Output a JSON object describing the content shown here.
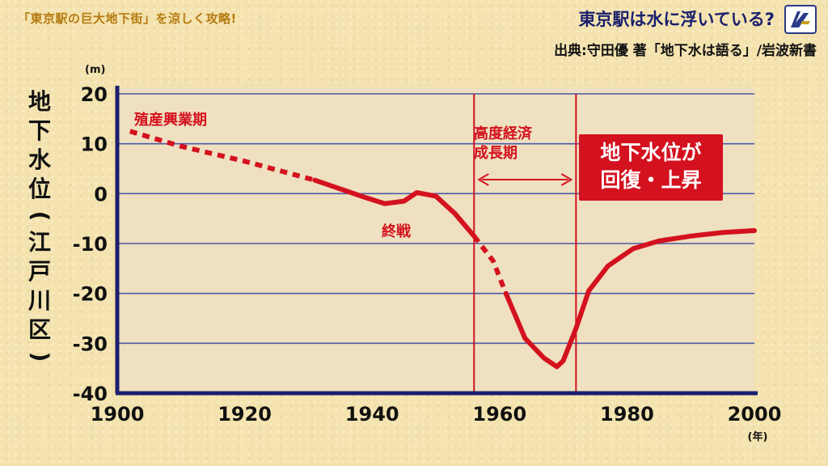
{
  "header": {
    "show_title": "「東京駅の巨大地下街」を涼しく攻略!",
    "topic_title": "東京駅は水に浮いている?",
    "source": "出典:守田優 著「地下水は語る」/岩波新書"
  },
  "chart_data": {
    "type": "line",
    "ylabel_chars": [
      "地",
      "下",
      "水",
      "位",
      "(",
      "江",
      "戸",
      "川",
      "区",
      ")"
    ],
    "yunit": "(m)",
    "xunit": "(年)",
    "xlim": [
      1900,
      2000
    ],
    "ylim": [
      -40,
      20
    ],
    "xticks": [
      1900,
      1920,
      1940,
      1960,
      1980,
      2000
    ],
    "yticks": [
      20,
      10,
      0,
      -10,
      -20,
      -30,
      -40
    ],
    "grid": true,
    "series": [
      {
        "points": [
          [
            1902,
            12.5
          ],
          [
            1910,
            9.5
          ],
          [
            1920,
            6.5
          ],
          [
            1931,
            2.7
          ],
          [
            1936,
            0.5
          ],
          [
            1939,
            -0.8
          ],
          [
            1942,
            -2.0
          ],
          [
            1945,
            -1.5
          ],
          [
            1947,
            0.2
          ],
          [
            1950,
            -0.5
          ],
          [
            1953,
            -4.0
          ],
          [
            1956,
            -8.5
          ],
          [
            1959,
            -13.5
          ],
          [
            1961,
            -20
          ],
          [
            1964,
            -29
          ],
          [
            1967,
            -33
          ],
          [
            1969,
            -34.7
          ],
          [
            1970,
            -33.5
          ],
          [
            1972,
            -27
          ],
          [
            1974,
            -19.5
          ],
          [
            1977,
            -14.5
          ],
          [
            1981,
            -11
          ],
          [
            1985,
            -9.5
          ],
          [
            1990,
            -8.5
          ],
          [
            1995,
            -7.8
          ],
          [
            2000,
            -7.4
          ]
        ],
        "dashed_segments": [
          [
            1902,
            1931
          ],
          [
            1956,
            1961
          ]
        ]
      }
    ],
    "vlines": [
      1956,
      1972
    ],
    "annotations": {
      "early_period": "殖産興業期",
      "war_end": "終戦",
      "growth_period_line1": "高度経済",
      "growth_period_line2": "成長期",
      "recovery_line1": "地下水位が",
      "recovery_line2": "回復・上昇"
    },
    "colors": {
      "line": "#d4111e",
      "grid": "#4a5aa8",
      "axis": "#1a1f6e",
      "plot_bg": "#eee0c0"
    }
  }
}
